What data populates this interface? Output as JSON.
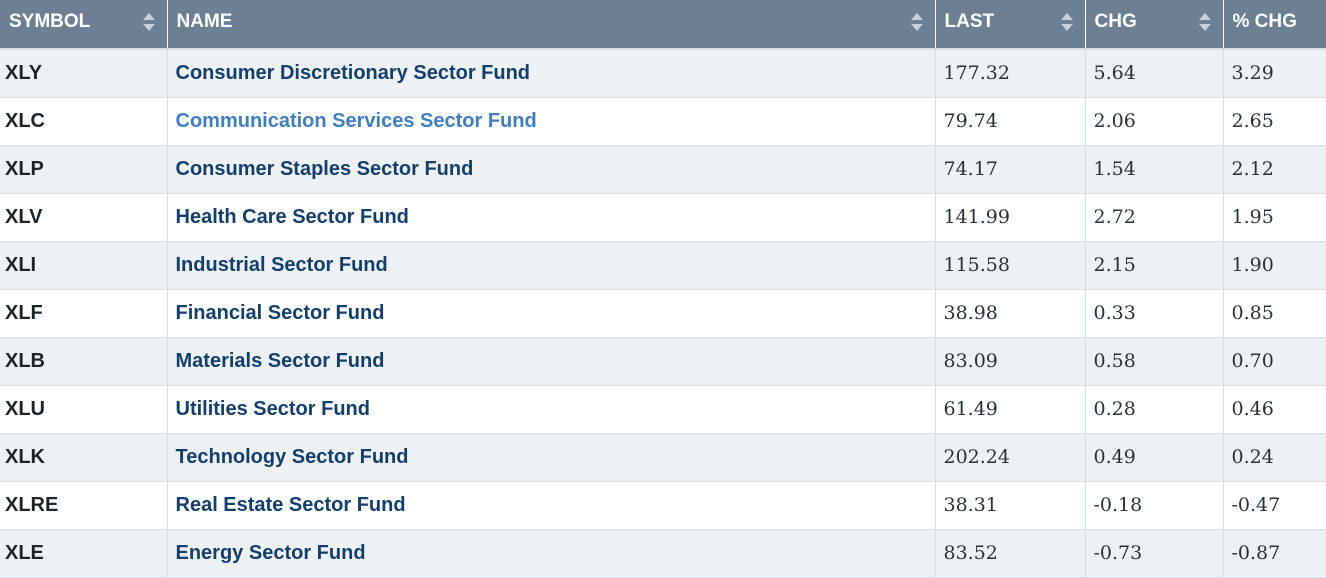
{
  "table": {
    "columns": [
      {
        "key": "symbol",
        "label": "SYMBOL"
      },
      {
        "key": "name",
        "label": "NAME"
      },
      {
        "key": "last",
        "label": "LAST"
      },
      {
        "key": "chg",
        "label": "CHG"
      },
      {
        "key": "pct_chg",
        "label": "% CHG"
      }
    ],
    "rows": [
      {
        "symbol": "XLY",
        "name": "Consumer Discretionary Sector Fund",
        "last": "177.32",
        "chg": "5.64",
        "pct_chg": "3.29"
      },
      {
        "symbol": "XLC",
        "name": "Communication Services Sector Fund",
        "last": "79.74",
        "chg": "2.06",
        "pct_chg": "2.65",
        "hovered": true
      },
      {
        "symbol": "XLP",
        "name": "Consumer Staples Sector Fund",
        "last": "74.17",
        "chg": "1.54",
        "pct_chg": "2.12"
      },
      {
        "symbol": "XLV",
        "name": "Health Care Sector Fund",
        "last": "141.99",
        "chg": "2.72",
        "pct_chg": "1.95"
      },
      {
        "symbol": "XLI",
        "name": "Industrial Sector Fund",
        "last": "115.58",
        "chg": "2.15",
        "pct_chg": "1.90"
      },
      {
        "symbol": "XLF",
        "name": "Financial Sector Fund",
        "last": "38.98",
        "chg": "0.33",
        "pct_chg": "0.85"
      },
      {
        "symbol": "XLB",
        "name": "Materials Sector Fund",
        "last": "83.09",
        "chg": "0.58",
        "pct_chg": "0.70"
      },
      {
        "symbol": "XLU",
        "name": "Utilities Sector Fund",
        "last": "61.49",
        "chg": "0.28",
        "pct_chg": "0.46"
      },
      {
        "symbol": "XLK",
        "name": "Technology Sector Fund",
        "last": "202.24",
        "chg": "0.49",
        "pct_chg": "0.24"
      },
      {
        "symbol": "XLRE",
        "name": "Real Estate Sector Fund",
        "last": "38.31",
        "chg": "-0.18",
        "pct_chg": "-0.47"
      },
      {
        "symbol": "XLE",
        "name": "Energy Sector Fund",
        "last": "83.52",
        "chg": "-0.73",
        "pct_chg": "-0.87"
      }
    ]
  },
  "icons": {
    "sort": "sort-arrows-icon"
  },
  "colors": {
    "header_bg": "#6d7f93",
    "link": "#123f6e",
    "link_hover": "#3f7ec2",
    "row_alt": "#eef1f4"
  }
}
